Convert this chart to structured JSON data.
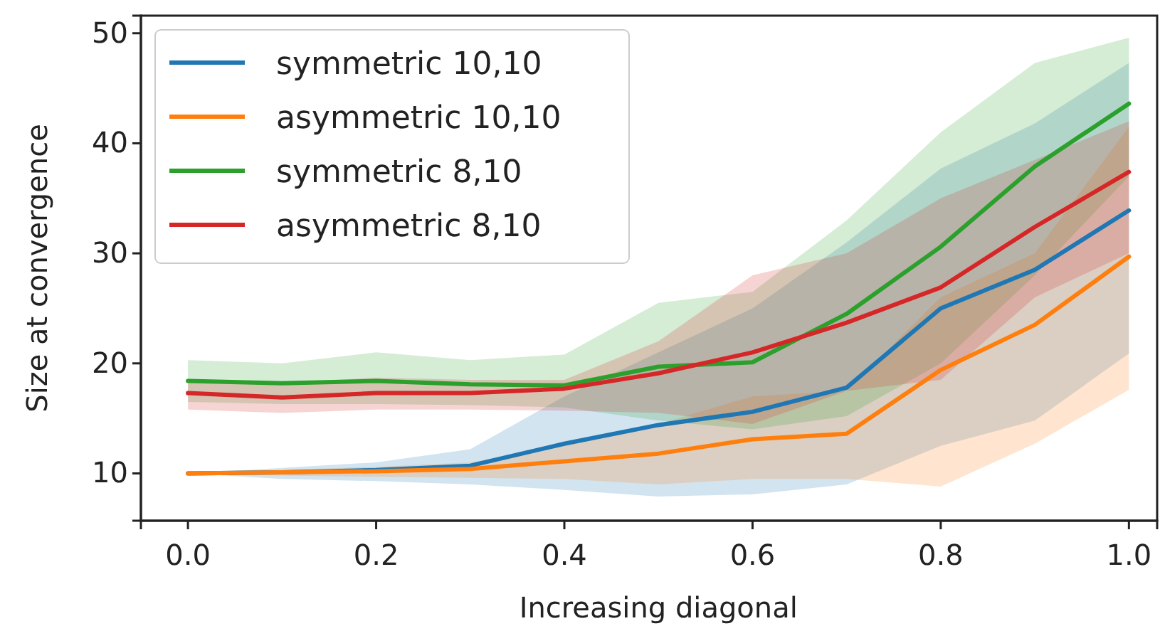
{
  "chart_data": {
    "type": "line",
    "xlabel": "Increasing diagonal",
    "ylabel": "Size at convergence",
    "x": [
      0,
      0.1,
      0.2,
      0.3,
      0.4,
      0.5,
      0.6,
      0.7,
      0.8,
      0.9,
      1.0
    ],
    "xlim": [
      -0.05,
      1.03
    ],
    "ylim": [
      5.7,
      51.6
    ],
    "xticks": [
      {
        "value": 0,
        "label": "0.0"
      },
      {
        "value": 0.2,
        "label": "0.2"
      },
      {
        "value": 0.4,
        "label": "0.4"
      },
      {
        "value": 0.6,
        "label": "0.6"
      },
      {
        "value": 0.8,
        "label": "0.8"
      },
      {
        "value": 1,
        "label": "1.0"
      }
    ],
    "yticks": [
      10,
      20,
      30,
      40,
      50
    ],
    "legend": "top left",
    "grid": false,
    "series": [
      {
        "name": "symmetric 10,10",
        "color": "#1f77b4",
        "values": [
          10,
          10.1,
          10.3,
          10.7,
          12.7,
          14.4,
          15.6,
          17.8,
          25.0,
          28.5,
          33.9
        ],
        "lower": [
          10,
          9.5,
          9.3,
          9,
          8.5,
          7.9,
          8.1,
          9,
          12.5,
          14.8,
          20.9
        ],
        "upper": [
          10,
          10.5,
          11,
          12.2,
          17,
          21,
          25,
          31,
          37.7,
          41.8,
          47.3
        ]
      },
      {
        "name": "asymmetric 10,10",
        "color": "#ff7f0e",
        "values": [
          10,
          10.1,
          10.2,
          10.4,
          11.1,
          11.8,
          13.1,
          13.6,
          19.4,
          23.5,
          29.7
        ],
        "lower": [
          10,
          9.8,
          9.7,
          9.6,
          9.5,
          9,
          9.5,
          9.5,
          8.8,
          12.7,
          17.6
        ],
        "upper": [
          10,
          10.3,
          10.6,
          11,
          12.5,
          14.5,
          17,
          17.5,
          26,
          30,
          41.5
        ]
      },
      {
        "name": "symmetric 8,10",
        "color": "#2ca02c",
        "values": [
          18.4,
          18.2,
          18.4,
          18.1,
          18.0,
          19.7,
          20.1,
          24.5,
          30.6,
          37.9,
          43.6
        ],
        "lower": [
          16.5,
          16.3,
          16.3,
          16.2,
          16,
          14.8,
          14,
          15.2,
          20,
          28,
          37
        ],
        "upper": [
          20.3,
          20,
          21,
          20.3,
          20.8,
          25.5,
          26.5,
          33,
          41,
          47.3,
          49.6
        ]
      },
      {
        "name": "asymmetric 8,10",
        "color": "#d62728",
        "values": [
          17.3,
          16.9,
          17.3,
          17.3,
          17.7,
          19.1,
          21.0,
          23.7,
          26.9,
          32.4,
          37.4
        ],
        "lower": [
          15.8,
          15.5,
          15.8,
          15.8,
          15.7,
          15.5,
          14.5,
          17.5,
          18.5,
          26,
          30
        ],
        "upper": [
          18.5,
          18.2,
          18.7,
          18.5,
          18.5,
          22,
          28,
          30,
          35,
          38.5,
          42
        ]
      }
    ]
  }
}
